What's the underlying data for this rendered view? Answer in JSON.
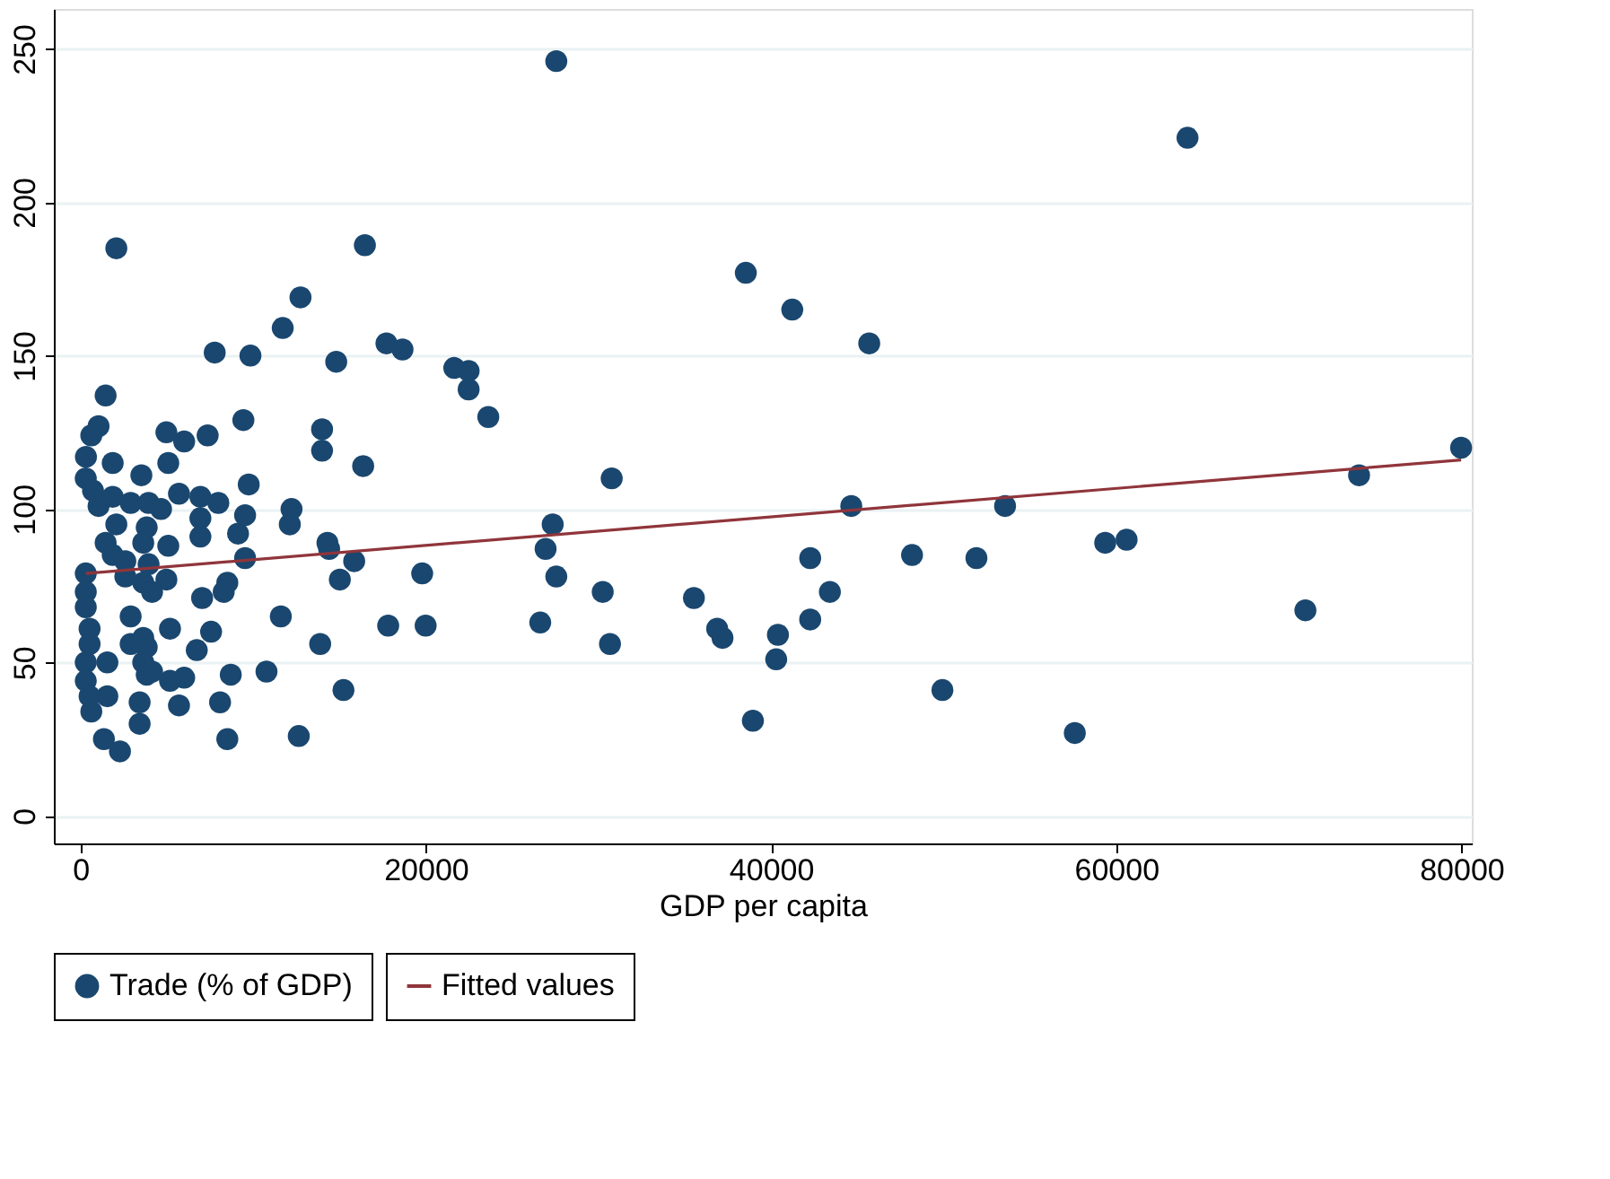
{
  "chart_data": {
    "type": "scatter",
    "xlabel": "GDP per capita",
    "xlim": [
      -1550,
      80600
    ],
    "xticks": [
      0,
      20000,
      40000,
      60000,
      80000
    ],
    "ylim": [
      -9,
      263
    ],
    "yticks": [
      0,
      50,
      100,
      150,
      200,
      250
    ],
    "grid": "y",
    "legend": "bottom",
    "marker": "circle",
    "series": [
      {
        "name": "Trade (% of GDP)",
        "color": "#1a476f",
        "x": [
          27560,
          64130,
          2070,
          16470,
          38540,
          41230,
          12740,
          45690,
          11710,
          17720,
          7770,
          9840,
          14810,
          18650,
          21650,
          22480,
          22480,
          23620,
          9430,
          13990,
          13990,
          16370,
          1450,
          1040,
          620,
          310,
          4970,
          6000,
          7360,
          1860,
          3520,
          5080,
          300,
          720,
          1040,
          1860,
          2900,
          3940,
          4660,
          5700,
          6940,
          7980,
          9740,
          6940,
          9530,
          2070,
          3830,
          6940,
          9120,
          1450,
          3630,
          5080,
          1860,
          9530,
          12220,
          12120,
          14300,
          14400,
          15850,
          15020,
          300,
          2590,
          3940,
          2590,
          3630,
          4970,
          4140,
          300,
          300,
          520,
          520,
          2900,
          2900,
          3630,
          3830,
          5180,
          7040,
          8500,
          8290,
          7560,
          6730,
          11600,
          13880,
          17820,
          300,
          1550,
          300,
          520,
          1550,
          3630,
          3830,
          4140,
          5180,
          6000,
          5700,
          3420,
          3420,
          8700,
          10770,
          8080,
          15230,
          1350,
          2280,
          8500,
          12640,
          620,
          30770,
          27350,
          26940,
          27560,
          19790,
          19990,
          26630,
          30250,
          30670,
          35530,
          36880,
          37190,
          40400,
          40300,
          38950,
          42270,
          43410,
          42270,
          44650,
          48170,
          51900,
          49930,
          53560,
          57600,
          59360,
          60600,
          70960,
          74070,
          79980
        ],
        "values": [
          246,
          221,
          185,
          186,
          177,
          165,
          169,
          154,
          159,
          154,
          151,
          150,
          148,
          152,
          146,
          145,
          139,
          130,
          129,
          126,
          119,
          114,
          137,
          127,
          124,
          117,
          125,
          122,
          124,
          115,
          111,
          115,
          110,
          106,
          101,
          104,
          102,
          102,
          100,
          105,
          104,
          102,
          108,
          97,
          98,
          95,
          94,
          91,
          92,
          89,
          89,
          88,
          85,
          84,
          100,
          95,
          89,
          87,
          83,
          77,
          79,
          83,
          82,
          78,
          76,
          77,
          73,
          73,
          68,
          61,
          56,
          65,
          56,
          58,
          55,
          61,
          71,
          76,
          73,
          60,
          54,
          65,
          56,
          62,
          50,
          50,
          44,
          39,
          39,
          50,
          46,
          47,
          44,
          45,
          36,
          37,
          30,
          46,
          47,
          37,
          41,
          25,
          21,
          25,
          26,
          34,
          110,
          95,
          87,
          78,
          79,
          62,
          63,
          73,
          56,
          71,
          61,
          58,
          59,
          51,
          31,
          84,
          73,
          64,
          101,
          85,
          84,
          41,
          101,
          27,
          89,
          90,
          67,
          111,
          120
        ]
      },
      {
        "name": "Fitted values",
        "type": "line",
        "marker": "none",
        "color": "#90353b",
        "x": [
          300,
          79980
        ],
        "values": [
          79,
          116
        ]
      }
    ]
  }
}
